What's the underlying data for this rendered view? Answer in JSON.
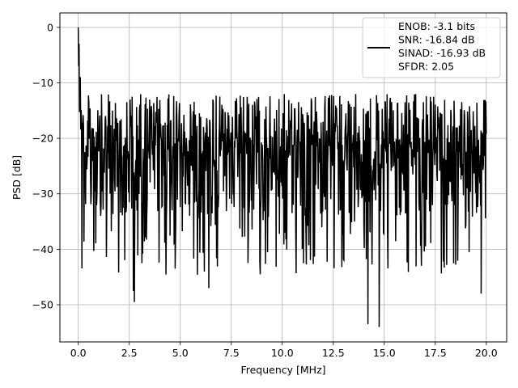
{
  "chart_data": {
    "type": "line",
    "title": "",
    "xlabel": "Frequency [MHz]",
    "ylabel": "PSD [dB]",
    "xlim": [
      -0.9,
      21.0
    ],
    "ylim": [
      -56.7,
      2.6
    ],
    "xticks": [
      0.0,
      2.5,
      5.0,
      7.5,
      10.0,
      12.5,
      15.0,
      17.5,
      20.0
    ],
    "xtick_labels": [
      "0.0",
      "2.5",
      "5.0",
      "7.5",
      "10.0",
      "12.5",
      "15.0",
      "17.5",
      "20.0"
    ],
    "yticks": [
      0,
      -10,
      -20,
      -30,
      -40,
      -50
    ],
    "ytick_labels": [
      "0",
      "−10",
      "−20",
      "−30",
      "−40",
      "−50"
    ],
    "grid": true,
    "legend": {
      "position": "top-right",
      "lines": [
        "ENOB: -3.1 bits",
        "SNR: -16.84 dB",
        "SINAD: -16.93 dB",
        "SFDR: 2.05"
      ]
    },
    "series": [
      {
        "color": "#000000",
        "x_range": [
          0.0,
          20.0
        ],
        "approx_points": 1000,
        "noise_mean_db": -22,
        "noise_range_db": [
          -33,
          -12
        ],
        "peak": {
          "x": 0.0,
          "y": 0.0
        },
        "notable_minima": [
          {
            "x": 2.75,
            "y": -49.5
          },
          {
            "x": 2.7,
            "y": -47.5
          },
          {
            "x": 14.2,
            "y": -53.5
          },
          {
            "x": 14.75,
            "y": -54.0
          },
          {
            "x": 19.75,
            "y": -48.0
          },
          {
            "x": 6.4,
            "y": -47.0
          },
          {
            "x": 4.75,
            "y": -43.5
          }
        ]
      }
    ]
  }
}
